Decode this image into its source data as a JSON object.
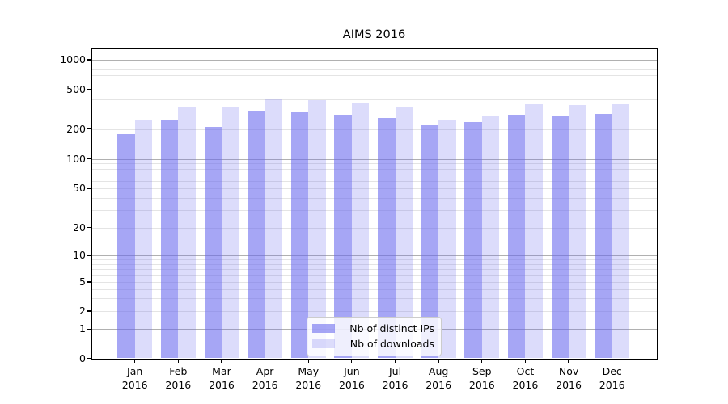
{
  "chart_data": {
    "type": "bar",
    "title": "AIMS 2016",
    "xlabel": "",
    "ylabel": "",
    "y_scale": "symlog",
    "grid": true,
    "legend_position": "lower center",
    "y_ticks": [
      0,
      1,
      2,
      5,
      10,
      20,
      50,
      100,
      200,
      500,
      1000
    ],
    "ylim": [
      0,
      1300
    ],
    "categories": [
      "Jan 2016",
      "Feb 2016",
      "Mar 2016",
      "Apr 2016",
      "May 2016",
      "Jun 2016",
      "Jul 2016",
      "Aug 2016",
      "Sep 2016",
      "Oct 2016",
      "Nov 2016",
      "Dec 2016"
    ],
    "series": [
      {
        "name": "Nb of distinct IPs",
        "color": "rgba(102,102,238,0.58)",
        "values": [
          176,
          249,
          210,
          303,
          296,
          277,
          260,
          216,
          234,
          279,
          269,
          281
        ]
      },
      {
        "name": "Nb of downloads",
        "color": "rgba(102,102,238,0.23)",
        "values": [
          245,
          329,
          329,
          402,
          390,
          371,
          331,
          242,
          274,
          357,
          350,
          355
        ]
      }
    ]
  }
}
